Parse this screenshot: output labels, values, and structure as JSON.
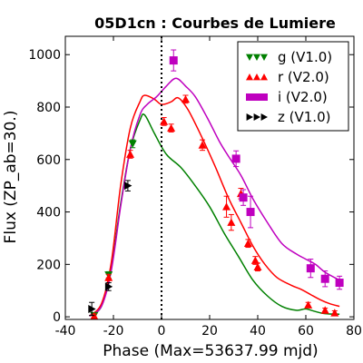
{
  "chart_data": {
    "type": "scatter",
    "title": "05D1cn : Courbes de Lumiere",
    "xlabel": "Phase (Max=53637.99 mjd)",
    "ylabel": "Flux (ZP_ab=30.)",
    "xlim": [
      -40,
      80
    ],
    "ylim": [
      -10,
      1070
    ],
    "xticks": [
      -40,
      -20,
      0,
      20,
      40,
      60,
      80
    ],
    "xtick_labels": [
      "-40",
      "-20",
      "0",
      "20",
      "40",
      "60",
      "80"
    ],
    "yticks": [
      0,
      200,
      400,
      600,
      800,
      1000
    ],
    "ytick_labels": [
      "0",
      "200",
      "400",
      "600",
      "800",
      "1000"
    ],
    "vline_x": 0,
    "grid": false,
    "legend_position": "top-right",
    "series": [
      {
        "name": "g (V1.0)",
        "color": "#008000",
        "marker": "triangle-down",
        "points": [
          [
            -28,
            5
          ],
          [
            -22,
            160
          ],
          [
            -12,
            660
          ]
        ],
        "errors": [
          8,
          12,
          15
        ],
        "curve": [
          [
            -30,
            3
          ],
          [
            -25,
            40
          ],
          [
            -21,
            180
          ],
          [
            -17,
            430
          ],
          [
            -13,
            640
          ],
          [
            -9,
            750
          ],
          [
            -7,
            770
          ],
          [
            -3,
            700
          ],
          [
            2,
            620
          ],
          [
            8,
            570
          ],
          [
            14,
            500
          ],
          [
            20,
            420
          ],
          [
            26,
            320
          ],
          [
            32,
            230
          ],
          [
            38,
            140
          ],
          [
            44,
            80
          ],
          [
            50,
            40
          ],
          [
            56,
            25
          ],
          [
            60,
            30
          ],
          [
            64,
            20
          ],
          [
            68,
            12
          ],
          [
            74,
            10
          ]
        ]
      },
      {
        "name": "r (V2.0)",
        "color": "#ff0000",
        "marker": "triangle-up",
        "points": [
          [
            -28,
            3
          ],
          [
            -22,
            150
          ],
          [
            -13,
            620
          ],
          [
            1,
            745
          ],
          [
            4,
            720
          ],
          [
            10,
            830
          ],
          [
            17,
            655
          ],
          [
            27,
            420
          ],
          [
            29,
            360
          ],
          [
            33,
            470
          ],
          [
            36,
            280
          ],
          [
            39,
            215
          ],
          [
            40,
            190
          ],
          [
            61,
            45
          ],
          [
            68,
            25
          ],
          [
            72,
            15
          ]
        ],
        "errors": [
          8,
          12,
          15,
          15,
          15,
          15,
          20,
          40,
          30,
          20,
          15,
          15,
          15,
          10,
          8,
          8
        ],
        "curve": [
          [
            -30,
            3
          ],
          [
            -25,
            50
          ],
          [
            -21,
            200
          ],
          [
            -17,
            500
          ],
          [
            -13,
            720
          ],
          [
            -9,
            820
          ],
          [
            -7,
            845
          ],
          [
            -3,
            830
          ],
          [
            0,
            810
          ],
          [
            4,
            820
          ],
          [
            7,
            835
          ],
          [
            11,
            790
          ],
          [
            16,
            700
          ],
          [
            22,
            580
          ],
          [
            28,
            450
          ],
          [
            33,
            360
          ],
          [
            38,
            270
          ],
          [
            43,
            200
          ],
          [
            48,
            150
          ],
          [
            54,
            120
          ],
          [
            58,
            105
          ],
          [
            62,
            85
          ],
          [
            66,
            65
          ],
          [
            70,
            50
          ],
          [
            74,
            40
          ]
        ]
      },
      {
        "name": "i (V2.0)",
        "color": "#bf00bf",
        "marker": "square",
        "points": [
          [
            5,
            978
          ],
          [
            31,
            603
          ],
          [
            34,
            455
          ],
          [
            37,
            400
          ],
          [
            62,
            185
          ],
          [
            68,
            145
          ],
          [
            74,
            130
          ]
        ],
        "errors": [
          40,
          30,
          30,
          60,
          35,
          30,
          25
        ],
        "curve": [
          [
            -30,
            3
          ],
          [
            -25,
            40
          ],
          [
            -21,
            170
          ],
          [
            -17,
            420
          ],
          [
            -13,
            640
          ],
          [
            -9,
            770
          ],
          [
            -6,
            810
          ],
          [
            -2,
            840
          ],
          [
            2,
            880
          ],
          [
            6,
            910
          ],
          [
            10,
            880
          ],
          [
            14,
            840
          ],
          [
            19,
            760
          ],
          [
            24,
            670
          ],
          [
            28,
            610
          ],
          [
            33,
            540
          ],
          [
            38,
            450
          ],
          [
            44,
            360
          ],
          [
            50,
            280
          ],
          [
            56,
            240
          ],
          [
            60,
            220
          ],
          [
            64,
            200
          ],
          [
            68,
            170
          ],
          [
            74,
            140
          ]
        ]
      },
      {
        "name": "z (V1.0)",
        "color": "#000000",
        "marker": "triangle-right",
        "points": [
          [
            -29,
            30
          ],
          [
            -22,
            115
          ],
          [
            -14,
            500
          ]
        ],
        "errors": [
          25,
          15,
          20
        ],
        "curve": []
      }
    ]
  }
}
